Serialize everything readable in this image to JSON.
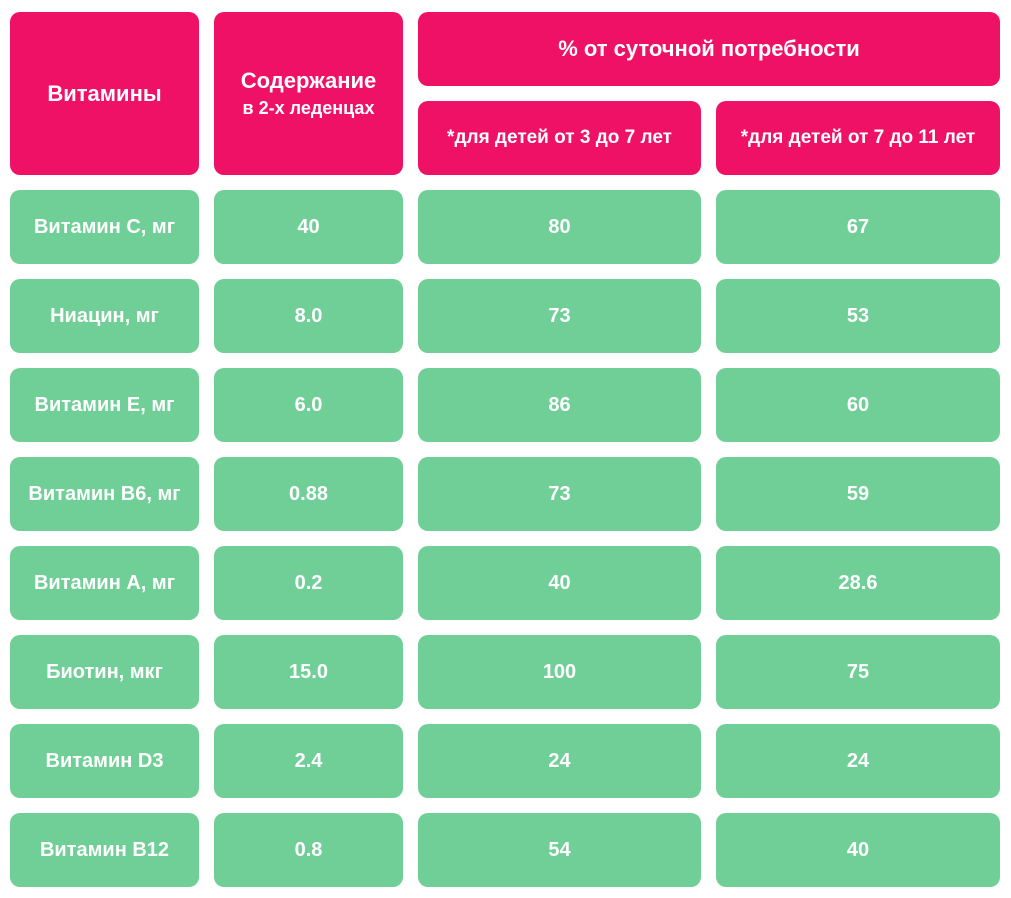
{
  "header": {
    "vitamins": "Витамины",
    "content_title": "Содержание",
    "content_sub": "в 2-х леденцах",
    "daily_need": "% от суточной потребности",
    "age_3_7": "*для детей от 3 до 7 лет",
    "age_7_11": "*для детей от 7 до 11 лет"
  },
  "colors": {
    "header": "#ee1166",
    "row": "#70cf97",
    "text": "#ffffff"
  },
  "rows": [
    {
      "name": "Витамин С, мг",
      "content": "40",
      "pct_3_7": "80",
      "pct_7_11": "67"
    },
    {
      "name": "Ниацин, мг",
      "content": "8.0",
      "pct_3_7": "73",
      "pct_7_11": "53"
    },
    {
      "name": "Витамин Е, мг",
      "content": "6.0",
      "pct_3_7": "86",
      "pct_7_11": "60"
    },
    {
      "name": "Витамин В6, мг",
      "content": "0.88",
      "pct_3_7": "73",
      "pct_7_11": "59"
    },
    {
      "name": "Витамин А, мг",
      "content": "0.2",
      "pct_3_7": "40",
      "pct_7_11": "28.6"
    },
    {
      "name": "Биотин, мкг",
      "content": "15.0",
      "pct_3_7": "100",
      "pct_7_11": "75"
    },
    {
      "name": "Витамин D3",
      "content": "2.4",
      "pct_3_7": "24",
      "pct_7_11": "24"
    },
    {
      "name": "Витамин В12",
      "content": "0.8",
      "pct_3_7": "54",
      "pct_7_11": "40"
    }
  ]
}
